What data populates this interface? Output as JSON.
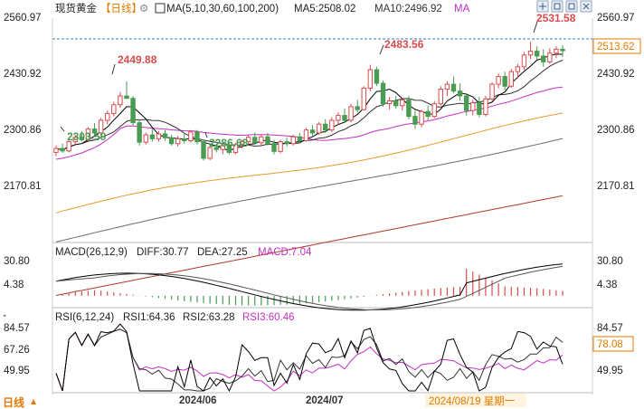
{
  "header": {
    "title": "现货黄金",
    "period": "【日线】",
    "ma_label": "MA(5,10,30,60,100,200)",
    "ma5": "MA5:2508.02",
    "ma10": "MA10:2496.92",
    "ma_more": "MA"
  },
  "price_axis": {
    "left_ticks": [
      "2560.97",
      "2430.92",
      "2300.86",
      "2170.81"
    ],
    "right_ticks": [
      "2560.97",
      "2430.92",
      "2300.86",
      "2170.81"
    ],
    "current_price": "2513.62",
    "annotations": [
      "2531.58",
      "2483.56",
      "2449.88",
      "2303.59",
      "2286.68"
    ]
  },
  "macd": {
    "label": "MACD(26,12,9)",
    "diff": "DIFF:30.77",
    "dea": "DEA:27.25",
    "macd": "MACD:7.04",
    "left_ticks": [
      "30.80",
      "4.38"
    ],
    "right_ticks": [
      "30.80",
      "4.38"
    ]
  },
  "rsi": {
    "label": "RSI(6,12,24)",
    "rsi1": "RSI1:64.36",
    "rsi2": "RSI2:63.28",
    "rsi3": "RSI3:60.46",
    "left_ticks": [
      "84.57",
      "67.26",
      "49.95"
    ],
    "right_ticks": [
      "84.57",
      "49.95"
    ],
    "current": "78.08"
  },
  "x_axis": {
    "labels": [
      "2024/06",
      "2024/07"
    ],
    "cursor_label": "2024/08/19 星期一"
  },
  "footer": {
    "period_button": "日线"
  },
  "colors": {
    "up": "#d94c4c",
    "down": "#4a9b53",
    "ma5": "#000000",
    "ma10": "#303030",
    "ma30": "#c42fc4",
    "ma60": "#e89a2a",
    "ma100": "#6c6c6c",
    "ma200": "#b03a2e",
    "accent": "#e07b00"
  },
  "chart_data": {
    "type": "candlestick",
    "title": "现货黄金 【日线】",
    "y_range": [
      2130,
      2580
    ],
    "candles": [
      {
        "o": 2304,
        "h": 2318,
        "l": 2296,
        "c": 2312
      },
      {
        "o": 2312,
        "h": 2322,
        "l": 2303,
        "c": 2307
      },
      {
        "o": 2307,
        "h": 2330,
        "l": 2304,
        "c": 2326
      },
      {
        "o": 2326,
        "h": 2340,
        "l": 2318,
        "c": 2335
      },
      {
        "o": 2335,
        "h": 2348,
        "l": 2326,
        "c": 2330
      },
      {
        "o": 2330,
        "h": 2356,
        "l": 2325,
        "c": 2352
      },
      {
        "o": 2352,
        "h": 2364,
        "l": 2338,
        "c": 2344
      },
      {
        "o": 2344,
        "h": 2375,
        "l": 2340,
        "c": 2370
      },
      {
        "o": 2370,
        "h": 2390,
        "l": 2362,
        "c": 2384
      },
      {
        "o": 2384,
        "h": 2408,
        "l": 2378,
        "c": 2402
      },
      {
        "o": 2402,
        "h": 2428,
        "l": 2396,
        "c": 2420
      },
      {
        "o": 2420,
        "h": 2450,
        "l": 2414,
        "c": 2415
      },
      {
        "o": 2415,
        "h": 2420,
        "l": 2360,
        "c": 2365
      },
      {
        "o": 2365,
        "h": 2372,
        "l": 2318,
        "c": 2325
      },
      {
        "o": 2325,
        "h": 2345,
        "l": 2320,
        "c": 2340
      },
      {
        "o": 2340,
        "h": 2352,
        "l": 2326,
        "c": 2332
      },
      {
        "o": 2332,
        "h": 2348,
        "l": 2326,
        "c": 2342
      },
      {
        "o": 2342,
        "h": 2350,
        "l": 2328,
        "c": 2334
      },
      {
        "o": 2334,
        "h": 2340,
        "l": 2318,
        "c": 2322
      },
      {
        "o": 2322,
        "h": 2338,
        "l": 2316,
        "c": 2332
      },
      {
        "o": 2332,
        "h": 2344,
        "l": 2322,
        "c": 2328
      },
      {
        "o": 2328,
        "h": 2350,
        "l": 2324,
        "c": 2346
      },
      {
        "o": 2346,
        "h": 2350,
        "l": 2320,
        "c": 2326
      },
      {
        "o": 2326,
        "h": 2330,
        "l": 2287,
        "c": 2292
      },
      {
        "o": 2292,
        "h": 2318,
        "l": 2288,
        "c": 2314
      },
      {
        "o": 2314,
        "h": 2322,
        "l": 2304,
        "c": 2310
      },
      {
        "o": 2310,
        "h": 2322,
        "l": 2300,
        "c": 2318
      },
      {
        "o": 2318,
        "h": 2326,
        "l": 2300,
        "c": 2304
      },
      {
        "o": 2304,
        "h": 2324,
        "l": 2300,
        "c": 2320
      },
      {
        "o": 2320,
        "h": 2330,
        "l": 2312,
        "c": 2326
      },
      {
        "o": 2326,
        "h": 2340,
        "l": 2318,
        "c": 2335
      },
      {
        "o": 2335,
        "h": 2345,
        "l": 2320,
        "c": 2324
      },
      {
        "o": 2324,
        "h": 2340,
        "l": 2318,
        "c": 2336
      },
      {
        "o": 2336,
        "h": 2344,
        "l": 2318,
        "c": 2322
      },
      {
        "o": 2322,
        "h": 2330,
        "l": 2300,
        "c": 2306
      },
      {
        "o": 2306,
        "h": 2330,
        "l": 2302,
        "c": 2326
      },
      {
        "o": 2326,
        "h": 2334,
        "l": 2316,
        "c": 2322
      },
      {
        "o": 2322,
        "h": 2340,
        "l": 2318,
        "c": 2336
      },
      {
        "o": 2336,
        "h": 2344,
        "l": 2322,
        "c": 2328
      },
      {
        "o": 2328,
        "h": 2354,
        "l": 2326,
        "c": 2350
      },
      {
        "o": 2350,
        "h": 2360,
        "l": 2338,
        "c": 2344
      },
      {
        "o": 2344,
        "h": 2366,
        "l": 2340,
        "c": 2362
      },
      {
        "o": 2362,
        "h": 2372,
        "l": 2344,
        "c": 2350
      },
      {
        "o": 2350,
        "h": 2376,
        "l": 2346,
        "c": 2370
      },
      {
        "o": 2370,
        "h": 2386,
        "l": 2362,
        "c": 2380
      },
      {
        "o": 2380,
        "h": 2394,
        "l": 2364,
        "c": 2370
      },
      {
        "o": 2370,
        "h": 2404,
        "l": 2366,
        "c": 2398
      },
      {
        "o": 2398,
        "h": 2412,
        "l": 2386,
        "c": 2392
      },
      {
        "o": 2392,
        "h": 2440,
        "l": 2390,
        "c": 2436
      },
      {
        "o": 2436,
        "h": 2484,
        "l": 2430,
        "c": 2474
      },
      {
        "o": 2474,
        "h": 2480,
        "l": 2440,
        "c": 2446
      },
      {
        "o": 2446,
        "h": 2452,
        "l": 2398,
        "c": 2404
      },
      {
        "o": 2404,
        "h": 2418,
        "l": 2392,
        "c": 2410
      },
      {
        "o": 2410,
        "h": 2420,
        "l": 2394,
        "c": 2400
      },
      {
        "o": 2400,
        "h": 2416,
        "l": 2390,
        "c": 2412
      },
      {
        "o": 2412,
        "h": 2420,
        "l": 2372,
        "c": 2378
      },
      {
        "o": 2378,
        "h": 2390,
        "l": 2352,
        "c": 2362
      },
      {
        "o": 2362,
        "h": 2392,
        "l": 2356,
        "c": 2388
      },
      {
        "o": 2388,
        "h": 2400,
        "l": 2370,
        "c": 2378
      },
      {
        "o": 2378,
        "h": 2410,
        "l": 2374,
        "c": 2404
      },
      {
        "o": 2404,
        "h": 2440,
        "l": 2400,
        "c": 2434
      },
      {
        "o": 2434,
        "h": 2450,
        "l": 2420,
        "c": 2444
      },
      {
        "o": 2444,
        "h": 2460,
        "l": 2426,
        "c": 2430
      },
      {
        "o": 2430,
        "h": 2446,
        "l": 2410,
        "c": 2420
      },
      {
        "o": 2420,
        "h": 2426,
        "l": 2380,
        "c": 2390
      },
      {
        "o": 2390,
        "h": 2412,
        "l": 2380,
        "c": 2406
      },
      {
        "o": 2406,
        "h": 2418,
        "l": 2376,
        "c": 2382
      },
      {
        "o": 2382,
        "h": 2420,
        "l": 2378,
        "c": 2414
      },
      {
        "o": 2414,
        "h": 2448,
        "l": 2410,
        "c": 2444
      },
      {
        "o": 2444,
        "h": 2466,
        "l": 2436,
        "c": 2460
      },
      {
        "o": 2460,
        "h": 2470,
        "l": 2432,
        "c": 2440
      },
      {
        "o": 2440,
        "h": 2476,
        "l": 2436,
        "c": 2470
      },
      {
        "o": 2470,
        "h": 2486,
        "l": 2456,
        "c": 2480
      },
      {
        "o": 2480,
        "h": 2510,
        "l": 2474,
        "c": 2504
      },
      {
        "o": 2504,
        "h": 2532,
        "l": 2496,
        "c": 2512
      },
      {
        "o": 2512,
        "h": 2522,
        "l": 2494,
        "c": 2502
      },
      {
        "o": 2502,
        "h": 2516,
        "l": 2480,
        "c": 2490
      },
      {
        "o": 2490,
        "h": 2518,
        "l": 2486,
        "c": 2508
      },
      {
        "o": 2508,
        "h": 2522,
        "l": 2498,
        "c": 2516
      },
      {
        "o": 2516,
        "h": 2524,
        "l": 2500,
        "c": 2513
      }
    ],
    "ma": {
      "ma5": {
        "from": [
          2300,
          2330
        ],
        "to": [
          2508
        ]
      },
      "ma30": {
        "start": 2290,
        "end": 2441
      },
      "ma60": {
        "start": 2180,
        "end": 2375
      },
      "ma100": {
        "start": 2120,
        "end": 2336
      },
      "ma200": {
        "start": 2010,
        "end": 2215
      }
    },
    "macd": {
      "range": [
        -8,
        36
      ],
      "diff_end": 30.77,
      "dea_end": 27.25,
      "macd_end": 7.04
    },
    "rsi": {
      "range": [
        35,
        92
      ],
      "rsi1_end": 64.36,
      "rsi2_end": 63.28,
      "rsi3_end": 60.46
    }
  }
}
